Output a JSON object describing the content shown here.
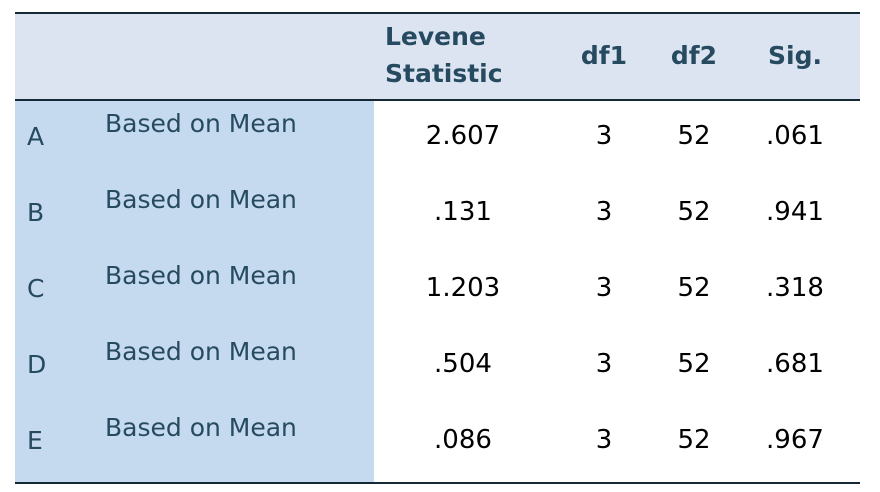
{
  "table": {
    "header": [
      "Levene Statistic",
      "df1",
      "df2",
      "Sig."
    ],
    "rows": [
      [
        "A",
        "Based on Mean",
        "2.607",
        "3",
        "52",
        ".061"
      ],
      [
        "B",
        "Based on Mean",
        ".131",
        "3",
        "52",
        ".941"
      ],
      [
        "C",
        "Based on Mean",
        "1.203",
        "3",
        "52",
        ".318"
      ],
      [
        "D",
        "Based on Mean",
        ".504",
        "3",
        "52",
        ".681"
      ],
      [
        "E",
        "Based on Mean",
        ".086",
        "3",
        "52",
        ".967"
      ]
    ]
  }
}
